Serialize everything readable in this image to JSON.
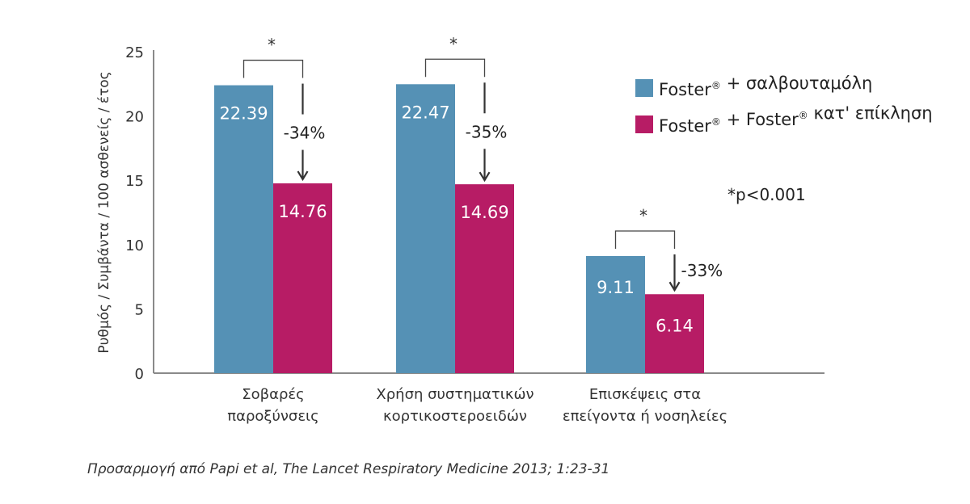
{
  "chart_data": {
    "type": "bar",
    "ylabel": "Ρυθμός / Συμβάντα / 100 ασθενείς / έτος",
    "ylim": [
      0,
      25
    ],
    "yticks": [
      "0",
      "5",
      "10",
      "15",
      "20",
      "25"
    ],
    "categories": [
      [
        "Σοβαρές",
        "παροξύνσεις"
      ],
      [
        "Χρήση συστηματικών",
        "κορτικοστεροειδών"
      ],
      [
        "Επισκέψεις στα",
        "επείγοντα ή νοσηλείες"
      ]
    ],
    "series": [
      {
        "name_parts": [
          "Foster",
          "®",
          " + σαλβουταμόλη"
        ],
        "color": "#5591b5",
        "values": [
          22.39,
          22.47,
          9.11
        ],
        "labels": [
          "22.39",
          "22.47",
          "9.11"
        ]
      },
      {
        "name_parts": [
          "Foster",
          "®",
          " + Foster",
          "®",
          " κατ' επίκληση"
        ],
        "color": "#b71c65",
        "values": [
          14.76,
          14.69,
          6.14
        ],
        "labels": [
          "14.76",
          "14.69",
          "6.14"
        ]
      }
    ],
    "reductions": [
      "-34%",
      "-35%",
      "-33%"
    ],
    "significance": [
      "*",
      "*",
      "*"
    ],
    "legend_position": "top-right",
    "grid": false
  },
  "note": "*p<0.001",
  "caption": "Προσαρμογή από Papi et al, The Lancet Respiratory Medicine 2013; 1:23-31"
}
